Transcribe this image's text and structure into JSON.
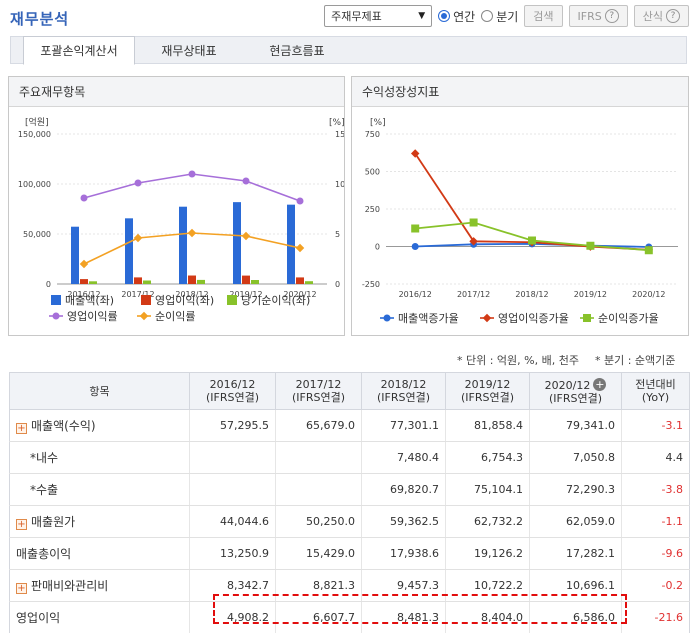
{
  "header": {
    "title": "재무분석",
    "select_value": "주재무제표",
    "radio_annual": "연간",
    "radio_quarter": "분기",
    "search_label": "검색",
    "ifrs_label": "IFRS",
    "formula_label": "산식"
  },
  "tabs": [
    {
      "label": "포괄손익계산서",
      "active": true
    },
    {
      "label": "재무상태표",
      "active": false
    },
    {
      "label": "현금흐름표",
      "active": false
    }
  ],
  "left_panel_title": "주요재무항목",
  "right_panel_title": "수익성장성지표",
  "chart_data": [
    {
      "type": "bar",
      "categories": [
        "2016/12",
        "2017/12",
        "2018/12",
        "2019/12",
        "2020/12"
      ],
      "left_unit": "[억원]",
      "right_unit": "[%]",
      "left_ticks": [
        "150,000",
        "100,000",
        "50,000",
        "0"
      ],
      "right_ticks": [
        "15",
        "10",
        "5",
        "0"
      ],
      "ylim": [
        0,
        150000
      ],
      "y2lim": [
        0,
        15
      ],
      "bar_series": [
        {
          "name": "매출액(좌)",
          "color": "#2a6ad6",
          "values": [
            57295.5,
            65679.0,
            77301.1,
            81858.4,
            79341.0
          ]
        },
        {
          "name": "영업이익(좌)",
          "color": "#d23a16",
          "values": [
            4908.2,
            6607.7,
            8481.3,
            8404.0,
            6586.0
          ]
        },
        {
          "name": "당기순이익(좌)",
          "color": "#88c22a",
          "values": [
            2700,
            3500,
            4100,
            4000,
            2800
          ]
        }
      ],
      "line_series": [
        {
          "name": "영업이익률",
          "color": "#a66fd9",
          "values": [
            8.6,
            10.1,
            11.0,
            10.3,
            8.3
          ]
        },
        {
          "name": "순이익률",
          "color": "#f3a123",
          "values": [
            2.0,
            4.6,
            5.1,
            4.8,
            3.6
          ]
        }
      ]
    },
    {
      "type": "line",
      "categories": [
        "2016/12",
        "2017/12",
        "2018/12",
        "2019/12",
        "2020/12"
      ],
      "unit": "[%]",
      "ticks": [
        "750",
        "500",
        "250",
        "0",
        "-250"
      ],
      "ylim": [
        -250,
        750
      ],
      "series": [
        {
          "name": "매출액증가율",
          "color": "#2a6ad6",
          "values": [
            0,
            14.6,
            17.7,
            5.9,
            -3.1
          ]
        },
        {
          "name": "영업이익증가율",
          "color": "#d23a16",
          "values": [
            620,
            34.6,
            28.4,
            -0.9,
            -21.6
          ]
        },
        {
          "name": "순이익증가율",
          "color": "#88c22a",
          "values": [
            120,
            160,
            40,
            5,
            -25
          ]
        }
      ]
    }
  ],
  "notes": {
    "unit": "* 단위 : 억원, %, 배, 천주",
    "quarter": "* 분기 : 순액기준"
  },
  "table": {
    "headers": [
      {
        "l1": "항목",
        "l2": ""
      },
      {
        "l1": "2016/12",
        "l2": "(IFRS연결)"
      },
      {
        "l1": "2017/12",
        "l2": "(IFRS연결)"
      },
      {
        "l1": "2018/12",
        "l2": "(IFRS연결)"
      },
      {
        "l1": "2019/12",
        "l2": "(IFRS연결)"
      },
      {
        "l1": "2020/12",
        "l2": "(IFRS연결)"
      },
      {
        "l1": "전년대비",
        "l2": "(YoY)"
      }
    ],
    "rows": [
      {
        "label": "매출액(수익)",
        "expand": true,
        "indent": false,
        "values": [
          "57,295.5",
          "65,679.0",
          "77,301.1",
          "81,858.4",
          "79,341.0"
        ],
        "yoy": "-3.1"
      },
      {
        "label": "*내수",
        "expand": false,
        "indent": true,
        "values": [
          "",
          "",
          "7,480.4",
          "6,754.3",
          "7,050.8"
        ],
        "yoy": "4.4"
      },
      {
        "label": "*수출",
        "expand": false,
        "indent": true,
        "values": [
          "",
          "",
          "69,820.7",
          "75,104.1",
          "72,290.3"
        ],
        "yoy": "-3.8"
      },
      {
        "label": "매출원가",
        "expand": true,
        "indent": false,
        "values": [
          "44,044.6",
          "50,250.0",
          "59,362.5",
          "62,732.2",
          "62,059.0"
        ],
        "yoy": "-1.1"
      },
      {
        "label": "매출총이익",
        "expand": false,
        "indent": false,
        "values": [
          "13,250.9",
          "15,429.0",
          "17,938.6",
          "19,126.2",
          "17,282.1"
        ],
        "yoy": "-9.6"
      },
      {
        "label": "판매비와관리비",
        "expand": true,
        "indent": false,
        "values": [
          "8,342.7",
          "8,821.3",
          "9,457.3",
          "10,722.2",
          "10,696.1"
        ],
        "yoy": "-0.2"
      },
      {
        "label": "영업이익",
        "expand": false,
        "indent": false,
        "values": [
          "4,908.2",
          "6,607.7",
          "8,481.3",
          "8,404.0",
          "6,586.0"
        ],
        "yoy": "-21.6"
      }
    ]
  }
}
